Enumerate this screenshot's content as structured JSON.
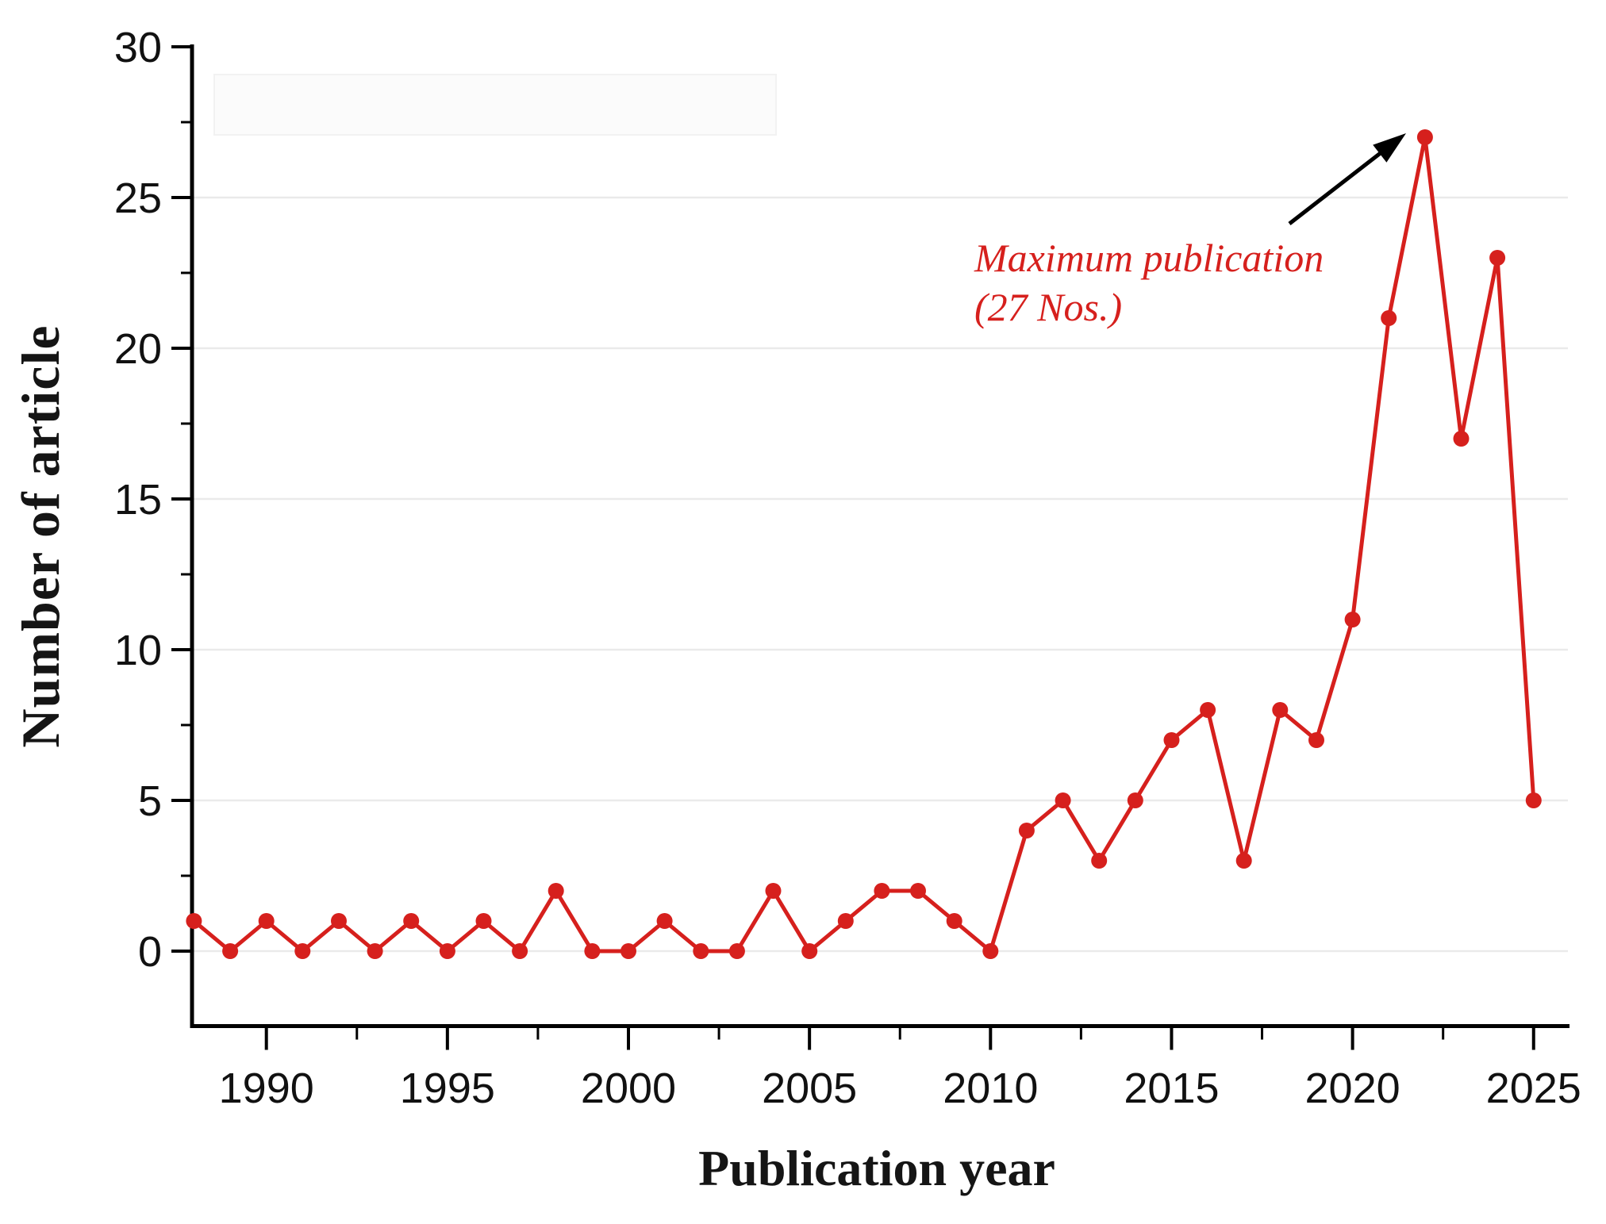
{
  "chart_data": {
    "type": "line",
    "title": "",
    "xlabel": "Publication year",
    "ylabel": "Number of article",
    "x": [
      1988,
      1989,
      1990,
      1991,
      1992,
      1993,
      1994,
      1995,
      1996,
      1997,
      1998,
      1999,
      2000,
      2001,
      2002,
      2003,
      2004,
      2005,
      2006,
      2007,
      2008,
      2009,
      2010,
      2011,
      2012,
      2013,
      2014,
      2015,
      2016,
      2017,
      2018,
      2019,
      2020,
      2021,
      2022,
      2023,
      2024,
      2025
    ],
    "series": [
      {
        "name": "Number of article",
        "values": [
          1,
          0,
          1,
          0,
          1,
          0,
          1,
          0,
          1,
          0,
          2,
          0,
          0,
          1,
          0,
          0,
          2,
          0,
          1,
          2,
          2,
          1,
          0,
          4,
          5,
          3,
          5,
          7,
          8,
          3,
          8,
          7,
          11,
          21,
          27,
          17,
          23,
          5
        ]
      }
    ],
    "xlim": [
      1988,
      2025
    ],
    "ylim": [
      0,
      30
    ],
    "xticks_major": [
      1990,
      1995,
      2000,
      2005,
      2010,
      2015,
      2020,
      2025
    ],
    "xticks_minor": [
      1992.5,
      1997.5,
      2002.5,
      2007.5,
      2012.5,
      2017.5,
      2022.5
    ],
    "yticks_major": [
      0,
      5,
      10,
      15,
      20,
      25,
      30
    ],
    "yticks_minor": [
      2.5,
      7.5,
      12.5,
      17.5,
      22.5,
      27.5
    ],
    "grid": "horizontal gridlines at major y ticks",
    "legend": "none",
    "annotation": {
      "line1": "Maximum publication",
      "line2": "(27 Nos.)",
      "target_year": 2022,
      "target_value": 27
    },
    "colors": {
      "line": "#d6201d",
      "marker": "#d6201d",
      "annotation_text": "#d6201d",
      "arrow": "#000000",
      "axis": "#000000",
      "grid": "#eaeaea",
      "tick_label": "#111111"
    }
  }
}
